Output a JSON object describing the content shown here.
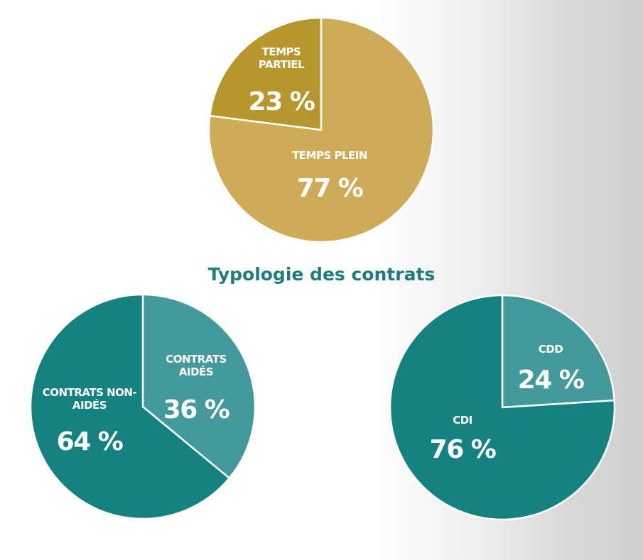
{
  "heading": "Typologie des contrats",
  "chart_data": [
    {
      "type": "pie",
      "direction": "counterclockwise",
      "categories": [
        "TEMPS PARTIEL",
        "TEMPS PLEIN"
      ],
      "values": [
        23,
        77
      ],
      "value_labels": [
        "23 %",
        "77 %"
      ],
      "colors": [
        "#b8962e",
        "#cdab57"
      ]
    },
    {
      "type": "pie",
      "direction": "clockwise",
      "categories": [
        "CONTRATS AIDÉS",
        "CONTRATS NON-AIDÉS"
      ],
      "values": [
        36,
        64
      ],
      "value_labels": [
        "36 %",
        "64 %"
      ],
      "colors": [
        "#449a9a",
        "#16827f"
      ]
    },
    {
      "type": "pie",
      "direction": "clockwise",
      "categories": [
        "CDD",
        "CDI"
      ],
      "values": [
        24,
        76
      ],
      "value_labels": [
        "24 %",
        "76 %"
      ],
      "colors": [
        "#449a9a",
        "#16827f"
      ]
    }
  ]
}
